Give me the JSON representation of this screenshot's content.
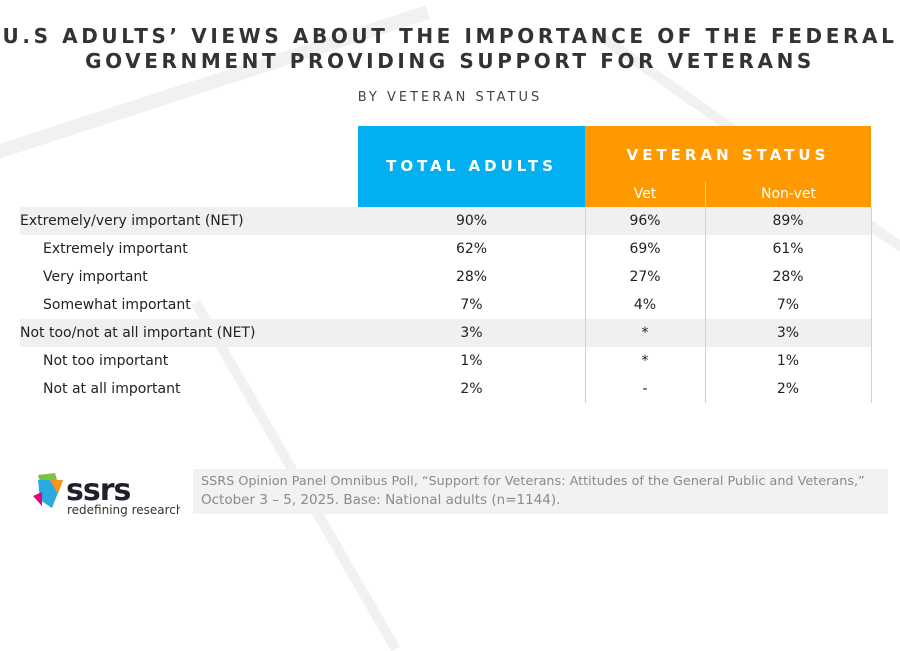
{
  "title_lines": [
    "U.S ADULTS’ VIEWS ABOUT THE IMPORTANCE OF THE FEDERAL",
    "GOVERNMENT PROVIDING SUPPORT FOR VETERANS"
  ],
  "subtitle": "BY VETERAN STATUS",
  "chart_data": {
    "type": "table",
    "title": "U.S ADULTS’ VIEWS ABOUT THE IMPORTANCE OF THE FEDERAL GOVERNMENT PROVIDING SUPPORT FOR VETERANS",
    "subtitle": "BY VETERAN STATUS",
    "column_groups": [
      "TOTAL ADULTS",
      "VETERAN STATUS"
    ],
    "columns": [
      "Vet",
      "Non-vet"
    ],
    "rows": [
      {
        "label": "Extremely/very important (NET)",
        "net": true,
        "values": [
          "90%",
          "96%",
          "89%"
        ]
      },
      {
        "label": "Extremely important",
        "net": false,
        "values": [
          "62%",
          "69%",
          "61%"
        ]
      },
      {
        "label": "Very important",
        "net": false,
        "values": [
          "28%",
          "27%",
          "28%"
        ]
      },
      {
        "label": "Somewhat important",
        "net": false,
        "values": [
          "7%",
          "4%",
          "7%"
        ]
      },
      {
        "label": "Not too/not at all important (NET)",
        "net": true,
        "values": [
          "3%",
          "*",
          "3%"
        ]
      },
      {
        "label": "Not too important",
        "net": false,
        "values": [
          "1%",
          "*",
          "1%"
        ]
      },
      {
        "label": "Not at all important",
        "net": false,
        "values": [
          "2%",
          "-",
          "2%"
        ]
      }
    ]
  },
  "colors": {
    "total": "#00b0f0",
    "veteran": "#ff9900",
    "net_row": "#f0f0f0"
  },
  "footnote_lines": [
    "SSRS Opinion Panel Omnibus Poll, “Support for Veterans: Attitudes of the General Public and Veterans,”",
    "October 3 – 5, 2025. Base: National adults (n=1144)."
  ],
  "logo": {
    "name": "ssrs",
    "tagline": "redefining research"
  }
}
